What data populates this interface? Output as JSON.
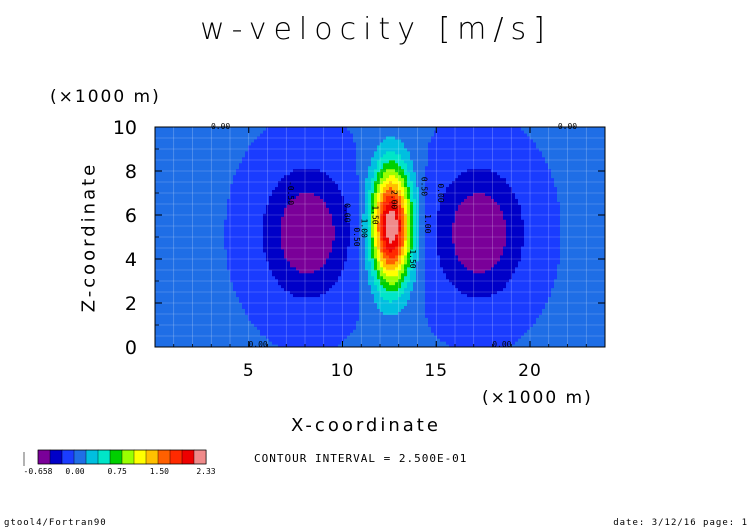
{
  "title": "w-velocity [m/s]",
  "footer": {
    "left": "gtool4/Fortran90",
    "right": "date: 3/12/16 page: 1"
  },
  "contour_interval_text": "CONTOUR INTERVAL = 2.500E-01",
  "colors": {
    "levels": [
      "#7a0099",
      "#0000c8",
      "#1a3cff",
      "#1f6ee6",
      "#00bfe0",
      "#00e5c8",
      "#00d000",
      "#9aff00",
      "#ffff00",
      "#ffc000",
      "#ff6000",
      "#ff2a00",
      "#ee0000",
      "#f08a8a"
    ]
  },
  "chart_data": {
    "type": "heatmap",
    "title": "w-velocity [m/s]",
    "xlabel": "X-coordinate",
    "ylabel": "Z-coordinate",
    "x_unit": "(×1000 m)",
    "y_unit": "(×1000 m)",
    "xlim": [
      0,
      24
    ],
    "ylim": [
      0,
      10
    ],
    "x_ticks": [
      5,
      10,
      15,
      20
    ],
    "y_ticks": [
      0,
      2,
      4,
      6,
      8,
      10
    ],
    "grid": true,
    "contour_labels": [
      {
        "x": 3.5,
        "z": 9.9,
        "text": "0.00"
      },
      {
        "x": 22.0,
        "z": 9.9,
        "text": "0.00"
      },
      {
        "x": 5.5,
        "z": 0.0,
        "text": "0.00"
      },
      {
        "x": 18.5,
        "z": 0.0,
        "text": "0.00"
      },
      {
        "x": 12.6,
        "z": 6.7,
        "text": "2.00"
      },
      {
        "x": 13.6,
        "z": 4.0,
        "text": "1.50"
      },
      {
        "x": 11.6,
        "z": 6.0,
        "text": "1.50"
      },
      {
        "x": 14.4,
        "z": 5.6,
        "text": "1.00"
      },
      {
        "x": 11.0,
        "z": 5.4,
        "text": "1.00"
      },
      {
        "x": 14.2,
        "z": 7.3,
        "text": "0.50"
      },
      {
        "x": 10.6,
        "z": 5.0,
        "text": "0.50"
      },
      {
        "x": 15.1,
        "z": 7.0,
        "text": "0.00"
      },
      {
        "x": 10.1,
        "z": 6.1,
        "text": "0.00"
      },
      {
        "x": 7.1,
        "z": 7.0,
        "text": "-0.50"
      }
    ],
    "colorbar": {
      "tick_values": [
        -0.658,
        0.0,
        0.75,
        1.5,
        2.33
      ],
      "tick_labels": [
        "-0.658",
        "0.00",
        "0.75",
        "1.50",
        "2.33"
      ]
    },
    "contour_interval": 0.25,
    "value_range": [
      -0.658,
      2.33
    ]
  }
}
